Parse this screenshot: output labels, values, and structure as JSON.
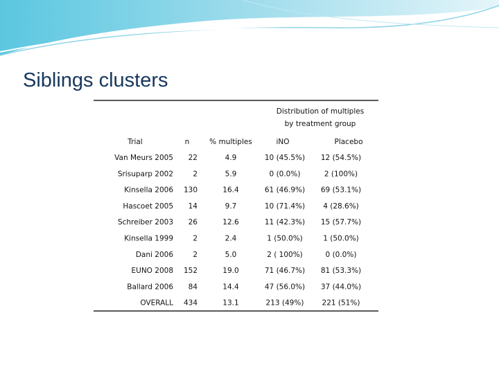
{
  "title": "Siblings clusters",
  "table": {
    "group_header": [
      "Distribution of multiples",
      "by treatment group"
    ],
    "columns": [
      "Trial",
      "n",
      "% multiples",
      "iNO",
      "Placebo"
    ],
    "rows": [
      [
        "Van Meurs 2005",
        "22",
        "4.9",
        "10 (45.5%)",
        "12 (54.5%)"
      ],
      [
        "Srisuparp 2002",
        "2",
        "5.9",
        "0 (0.0%)",
        "2 (100%)"
      ],
      [
        "Kinsella 2006",
        "130",
        "16.4",
        "61 (46.9%)",
        "69 (53.1%)"
      ],
      [
        "Hascoet 2005",
        "14",
        "9.7",
        "10 (71.4%)",
        "4 (28.6%)"
      ],
      [
        "Schreiber 2003",
        "26",
        "12.6",
        "11 (42.3%)",
        "15 (57.7%)"
      ],
      [
        "Kinsella 1999",
        "2",
        "2.4",
        "1 (50.0%)",
        "1 (50.0%)"
      ],
      [
        "Dani 2006",
        "2",
        "5.0",
        "2 ( 100%)",
        "0 (0.0%)"
      ],
      [
        "EUNO 2008",
        "152",
        "19.0",
        "71 (46.7%)",
        "81 (53.3%)"
      ],
      [
        "Ballard 2006",
        "84",
        "14.4",
        "47 (56.0%)",
        "37 (44.0%)"
      ],
      [
        "OVERALL",
        "434",
        "13.1",
        "213 (49%)",
        "221 (51%)"
      ]
    ]
  }
}
